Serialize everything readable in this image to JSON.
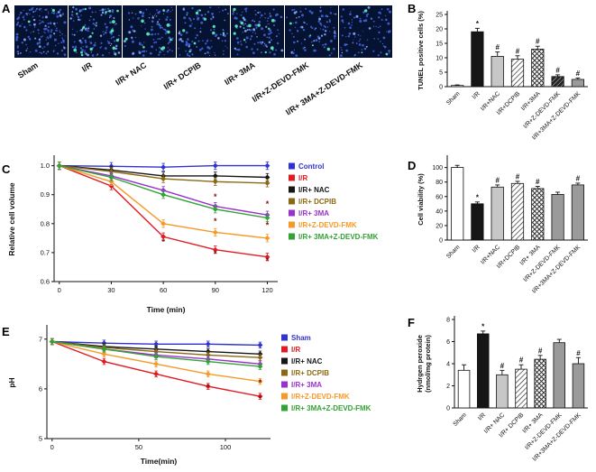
{
  "panels": {
    "a": {
      "label": "A"
    },
    "b": {
      "label": "B"
    },
    "c": {
      "label": "C"
    },
    "d": {
      "label": "D"
    },
    "e": {
      "label": "E"
    },
    "f": {
      "label": "F"
    }
  },
  "panel_a": {
    "images": [
      {
        "name": "Sham",
        "blue_dots": 150,
        "green_dots": 2
      },
      {
        "name": "I/R",
        "blue_dots": 120,
        "green_dots": 20
      },
      {
        "name": "I/R+ NAC",
        "blue_dots": 110,
        "green_dots": 10
      },
      {
        "name": "I/R+ DCPIB",
        "blue_dots": 105,
        "green_dots": 9
      },
      {
        "name": "I/R+ 3MA",
        "blue_dots": 110,
        "green_dots": 12
      },
      {
        "name": "I/R+Z-DEVD-FMK",
        "blue_dots": 95,
        "green_dots": 4
      },
      {
        "name": "I/R+ 3MA+Z-DEVD-FMK",
        "blue_dots": 95,
        "green_dots": 3
      }
    ],
    "colors": {
      "background": "#061231",
      "nucleus": "#3c5fd2",
      "bright_nucleus": "#7fa7f4",
      "tunel_positive": "#52e0b4"
    }
  },
  "chart_data": [
    {
      "panel": "B",
      "type": "bar",
      "title": "",
      "xlabel": "",
      "ylabel": "TUNEL positive cells (%)",
      "categories": [
        "Sham",
        "I/R",
        "I/R+NAC",
        "I/R+DCPIB",
        "I/R+3MA",
        "I/R+Z-DEVD-FMK",
        "I/R+3MA+Z-DEVD-FMK"
      ],
      "values": [
        0.4,
        19,
        10.5,
        9.5,
        13,
        3.5,
        2.5
      ],
      "errors": [
        0.2,
        1.2,
        1.5,
        1.2,
        1.0,
        0.6,
        0.5
      ],
      "annotations": [
        "",
        "*",
        "#",
        "#",
        "#",
        "#",
        "#"
      ],
      "styles": [
        "white",
        "black",
        "lightgray",
        "diag",
        "check",
        "densediag",
        "gray"
      ],
      "ylim": [
        0,
        25
      ],
      "yticks": [
        0,
        5,
        10,
        15,
        20,
        25
      ],
      "grid": false
    },
    {
      "panel": "C",
      "type": "line",
      "title": "",
      "xlabel": "Time (min)",
      "ylabel": "Relative cell volume",
      "x": [
        0,
        30,
        60,
        90,
        120
      ],
      "xticks": [
        0,
        30,
        60,
        90,
        120
      ],
      "xlim": [
        -3,
        126
      ],
      "ylim": [
        0.6,
        1.03
      ],
      "yticks": [
        "0.6",
        "0.7",
        "0.8",
        "0.9",
        "1.0"
      ],
      "point_error": 0.013,
      "legend_position": "right",
      "series": [
        {
          "name": "Control",
          "color": "#2f33cf",
          "values": [
            1.0,
            0.998,
            0.995,
            1.0,
            1.0
          ]
        },
        {
          "name": "I/R",
          "color": "#e01b24",
          "values": [
            1.0,
            0.93,
            0.755,
            0.71,
            0.685
          ]
        },
        {
          "name": "I/R+ NAC",
          "color": "#161616",
          "values": [
            1.0,
            0.985,
            0.965,
            0.965,
            0.96
          ]
        },
        {
          "name": "I/R+ DCPIB",
          "color": "#8b6914",
          "values": [
            1.0,
            0.98,
            0.955,
            0.945,
            0.94
          ]
        },
        {
          "name": "I/R+ 3MA",
          "color": "#9b30d0",
          "values": [
            1.0,
            0.965,
            0.915,
            0.86,
            0.83
          ]
        },
        {
          "name": "I/R+Z-DEVD-FMK",
          "color": "#f59a2a",
          "values": [
            1.0,
            0.945,
            0.8,
            0.77,
            0.75
          ]
        },
        {
          "name": "I/R+ 3MA+Z-DEVD-FMK",
          "color": "#31a334",
          "values": [
            1.0,
            0.96,
            0.9,
            0.85,
            0.82
          ]
        }
      ],
      "star_annotations": [
        {
          "x": 60,
          "y": 0.728,
          "text": "*"
        },
        {
          "x": 90,
          "y": 0.687,
          "text": "*"
        },
        {
          "x": 120,
          "y": 0.662,
          "text": "*"
        },
        {
          "x": 90,
          "y": 0.8,
          "text": "*"
        },
        {
          "x": 120,
          "y": 0.786,
          "text": "*"
        },
        {
          "x": 90,
          "y": 0.884,
          "text": "*"
        },
        {
          "x": 120,
          "y": 0.858,
          "text": "*"
        }
      ]
    },
    {
      "panel": "D",
      "type": "bar",
      "title": "",
      "xlabel": "",
      "ylabel": "Cell viability (%)",
      "categories": [
        "Sham",
        "I/R",
        "I/R+NAC",
        "I/R+DCPIB",
        "I/R+ 3MA",
        "I/R+Z-DEVD-FMK",
        "I/R+3MA+Z-DEVD-FMK"
      ],
      "values": [
        100,
        50,
        73,
        78,
        71,
        63,
        76
      ],
      "errors": [
        3,
        2.5,
        3,
        3,
        3,
        3,
        2.5
      ],
      "annotations": [
        "",
        "*",
        "#",
        "#",
        "#",
        "",
        "#"
      ],
      "styles": [
        "white",
        "black",
        "lightgray",
        "diag",
        "check",
        "gray",
        "gray"
      ],
      "ylim": [
        0,
        112
      ],
      "yticks": [
        0,
        20,
        40,
        60,
        80,
        100
      ],
      "grid": false
    },
    {
      "panel": "E",
      "type": "line",
      "title": "",
      "xlabel": "Time(min)",
      "ylabel": "pH",
      "x": [
        0,
        30,
        60,
        90,
        120
      ],
      "xticks": [
        0,
        50,
        100
      ],
      "xlim": [
        -3,
        126
      ],
      "ylim": [
        5,
        7.25
      ],
      "yticks": [
        5,
        6,
        7
      ],
      "point_error": 0.06,
      "legend_position": "right",
      "series": [
        {
          "name": "Sham",
          "color": "#2f33cf",
          "values": [
            6.95,
            6.92,
            6.9,
            6.9,
            6.88
          ]
        },
        {
          "name": "I/R",
          "color": "#e01b24",
          "values": [
            6.95,
            6.55,
            6.3,
            6.05,
            5.85
          ]
        },
        {
          "name": "I/R+ NAC",
          "color": "#161616",
          "values": [
            6.95,
            6.85,
            6.8,
            6.75,
            6.7
          ]
        },
        {
          "name": "I/R+ DCPIB",
          "color": "#8b6914",
          "values": [
            6.95,
            6.83,
            6.75,
            6.68,
            6.63
          ]
        },
        {
          "name": "I/R+ 3MA",
          "color": "#9b30d0",
          "values": [
            6.95,
            6.8,
            6.68,
            6.6,
            6.5
          ]
        },
        {
          "name": "I/R+Z-DEVD-FMK",
          "color": "#f59a2a",
          "values": [
            6.95,
            6.7,
            6.5,
            6.3,
            6.15
          ]
        },
        {
          "name": "I/R+ 3MA+Z-DEVD-FMK",
          "color": "#31a334",
          "values": [
            6.95,
            6.8,
            6.65,
            6.55,
            6.45
          ]
        }
      ],
      "star_annotations": [
        {
          "x": 90,
          "y": 5.98,
          "text": "*"
        },
        {
          "x": 120,
          "y": 5.75,
          "text": "*"
        },
        {
          "x": 120,
          "y": 6.07,
          "text": "*"
        }
      ]
    },
    {
      "panel": "F",
      "type": "bar",
      "title": "",
      "xlabel": "",
      "ylabel": "Hydrgen peroxide",
      "ylabel2": "(nmol/mg protein)",
      "categories": [
        "Sham",
        "I/R",
        "I/R+ NAC",
        "I/R+ DCPIB",
        "I/R+ 3MA",
        "I/R+Z-DEVD-FMK",
        "I/R+3MA+Z-DEVD-FMK"
      ],
      "values": [
        3.4,
        6.7,
        3.0,
        3.5,
        4.4,
        5.9,
        4.0
      ],
      "errors": [
        0.5,
        0.25,
        0.4,
        0.4,
        0.35,
        0.3,
        0.55
      ],
      "annotations": [
        "",
        "*",
        "#",
        "#",
        "#",
        "",
        "#"
      ],
      "styles": [
        "white",
        "black",
        "lightgray",
        "diag",
        "check",
        "gray",
        "gray"
      ],
      "ylim": [
        0,
        8
      ],
      "yticks": [
        0,
        2,
        4,
        6,
        8
      ],
      "grid": false
    }
  ]
}
